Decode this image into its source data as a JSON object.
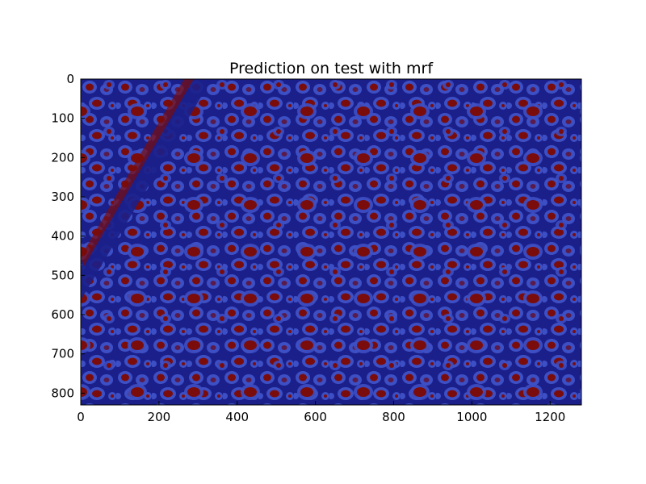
{
  "chart_data": {
    "type": "heatmap",
    "title": "Prediction on test with mrf",
    "xlabel": "",
    "ylabel": "",
    "xlim": [
      0,
      1280
    ],
    "ylim": [
      830,
      0
    ],
    "xticks": [
      0,
      200,
      400,
      600,
      800,
      1000,
      1200
    ],
    "yticks": [
      0,
      100,
      200,
      300,
      400,
      500,
      600,
      700,
      800
    ],
    "grid": false,
    "colormap": "jet",
    "colors": {
      "background_class": "#1b1f8a",
      "boundary_class": "#3d4fc4",
      "foreground_class": "#7a0c0c"
    }
  }
}
